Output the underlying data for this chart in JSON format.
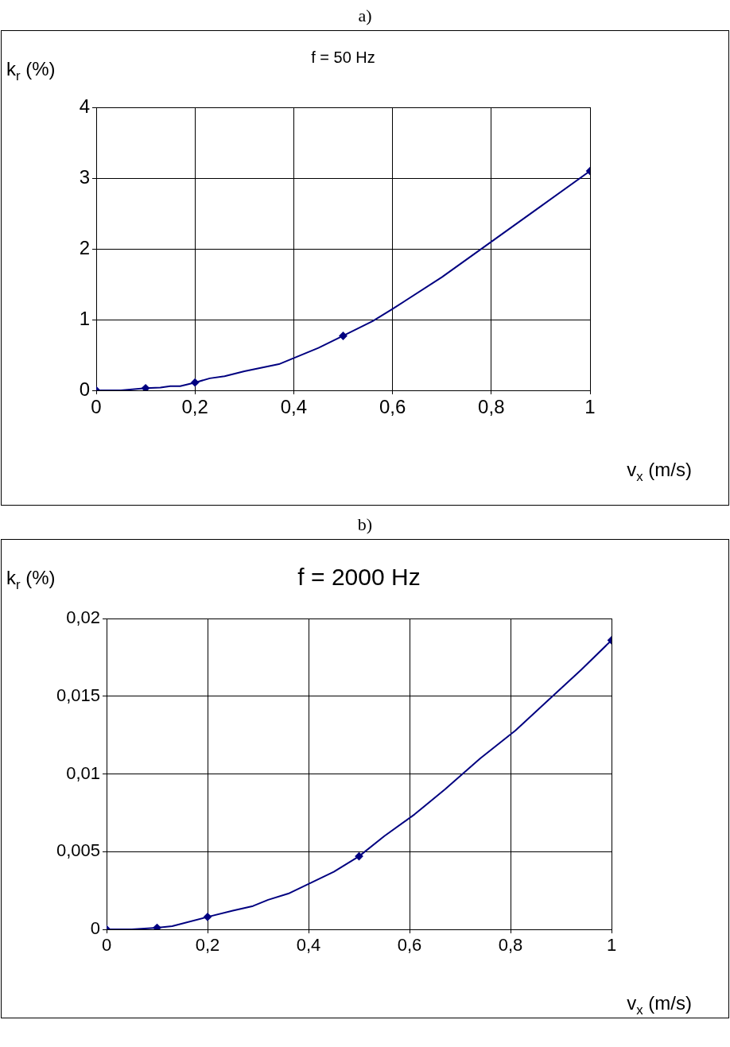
{
  "chart_data": [
    {
      "type": "line",
      "title": "f = 50 Hz",
      "xlabel": "v$_{x}$ (m/s)",
      "ylabel": "k$_{r}$ (%)",
      "annotations": [
        "a)"
      ],
      "grid": true,
      "legend": false,
      "xlim": [
        0,
        1
      ],
      "xticks": [
        {
          "value": 0,
          "label": "0"
        },
        {
          "value": 0.2,
          "label": "0,2"
        },
        {
          "value": 0.4,
          "label": "0,4"
        },
        {
          "value": 0.6,
          "label": "0,6"
        },
        {
          "value": 0.8,
          "label": "0,8"
        },
        1
      ],
      "ylim": [
        0,
        4
      ],
      "yticks": [
        {
          "value": 0,
          "label": "0"
        },
        1,
        2,
        3,
        4
      ],
      "series": [
        {
          "type": "line",
          "marker": "none",
          "color": "#000080",
          "x": [
            0,
            0.05,
            0.1,
            0.13,
            0.15,
            0.17,
            0.2,
            0.23,
            0.26,
            0.3,
            0.37,
            0.45,
            0.5,
            0.56,
            0.6,
            0.7,
            0.8,
            0.9,
            1
          ],
          "values": [
            0,
            0,
            0.03,
            0.04,
            0.06,
            0.06,
            0.11,
            0.17,
            0.2,
            0.27,
            0.37,
            0.6,
            0.77,
            0.98,
            1.15,
            1.6,
            2.1,
            2.6,
            3.1
          ]
        },
        {
          "type": "scatter",
          "marker": "diamond",
          "color": "#000080",
          "x": [
            0,
            0.1,
            0.2,
            0.5,
            1
          ],
          "values": [
            0,
            0.03,
            0.11,
            0.77,
            3.1
          ]
        }
      ]
    },
    {
      "type": "line",
      "title": "f = 2000 Hz",
      "xlabel": "v$_{x}$ (m/s)",
      "ylabel": "k$_{r}$ (%)",
      "annotations": [
        "b)"
      ],
      "grid": true,
      "legend": false,
      "xlim": [
        0,
        1
      ],
      "xticks": [
        {
          "value": 0,
          "label": "0"
        },
        {
          "value": 0.2,
          "label": "0,2"
        },
        {
          "value": 0.4,
          "label": "0,4"
        },
        {
          "value": 0.6,
          "label": "0,6"
        },
        {
          "value": 0.8,
          "label": "0,8"
        },
        1
      ],
      "ylim": [
        0,
        0.02
      ],
      "yticks": [
        {
          "value": 0,
          "label": "0"
        },
        {
          "value": 0.005,
          "label": "0,005"
        },
        {
          "value": 0.01,
          "label": "0,01"
        },
        {
          "value": 0.015,
          "label": "0,015"
        },
        {
          "value": 0.02,
          "label": "0,02"
        }
      ],
      "series": [
        {
          "type": "line",
          "marker": "none",
          "color": "#000080",
          "x": [
            0,
            0.05,
            0.1,
            0.13,
            0.2,
            0.25,
            0.29,
            0.32,
            0.36,
            0.45,
            0.5,
            0.55,
            0.61,
            0.67,
            0.74,
            0.81,
            0.87,
            0.94,
            1
          ],
          "values": [
            0,
            0,
            0.0001,
            0.0002,
            0.0008,
            0.0012,
            0.0015,
            0.0019,
            0.0023,
            0.0037,
            0.0047,
            0.006,
            0.0074,
            0.009,
            0.011,
            0.0128,
            0.0146,
            0.0167,
            0.0186
          ]
        },
        {
          "type": "scatter",
          "marker": "diamond",
          "color": "#000080",
          "x": [
            0,
            0.1,
            0.2,
            0.5,
            1
          ],
          "values": [
            0,
            0.0001,
            0.0008,
            0.0047,
            0.0186
          ]
        }
      ]
    }
  ]
}
